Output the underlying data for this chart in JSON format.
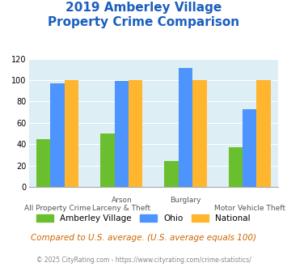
{
  "title_line1": "2019 Amberley Village",
  "title_line2": "Property Crime Comparison",
  "amberley": [
    45,
    50,
    24,
    37
  ],
  "ohio": [
    97,
    99,
    111,
    73
  ],
  "national": [
    100,
    100,
    100,
    100
  ],
  "color_amberley": "#6abf2e",
  "color_ohio": "#4d94ff",
  "color_national": "#ffb52e",
  "color_title": "#1a5fbf",
  "color_bg_chart": "#ddeef5",
  "color_note": "#cc6600",
  "color_footnote": "#888888",
  "ylim": [
    0,
    120
  ],
  "yticks": [
    0,
    20,
    40,
    60,
    80,
    100,
    120
  ],
  "top_labels": [
    "",
    "Arson",
    "Burglary",
    ""
  ],
  "bot_labels": [
    "All Property Crime",
    "Larceny & Theft",
    "",
    "Motor Vehicle Theft"
  ],
  "note_text": "Compared to U.S. average. (U.S. average equals 100)",
  "footnote_text": "© 2025 CityRating.com - https://www.cityrating.com/crime-statistics/",
  "legend_amberley": "Amberley Village",
  "legend_ohio": "Ohio",
  "legend_national": "National"
}
